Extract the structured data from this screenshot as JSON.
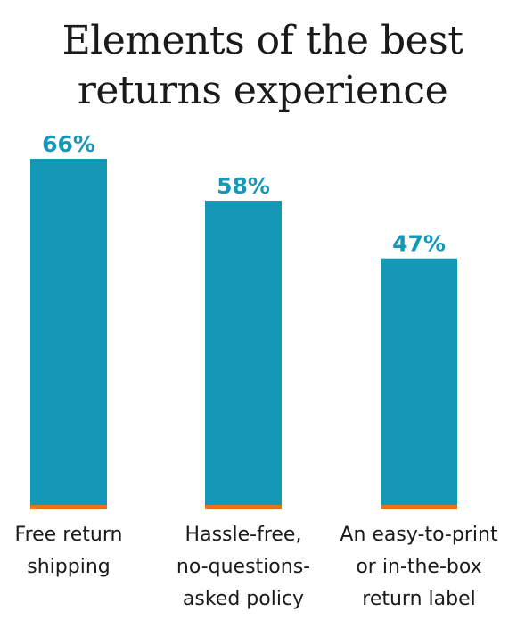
{
  "chart_data": {
    "type": "bar",
    "title_lines": [
      "Elements of the best",
      "returns experience"
    ],
    "categories": [
      [
        "Free return",
        "shipping"
      ],
      [
        "Hassle-free,",
        "no-questions-",
        "asked policy"
      ],
      [
        "An easy-to-print",
        "or in-the-box",
        "return label"
      ]
    ],
    "values": [
      66,
      58,
      47
    ],
    "value_labels": [
      "66%",
      "58%",
      "47%"
    ],
    "xlabel": "",
    "ylabel": "",
    "ylim": [
      0,
      66
    ],
    "grid": false,
    "bar_color": "#1597b8",
    "baseline_color": "#e8731c"
  }
}
